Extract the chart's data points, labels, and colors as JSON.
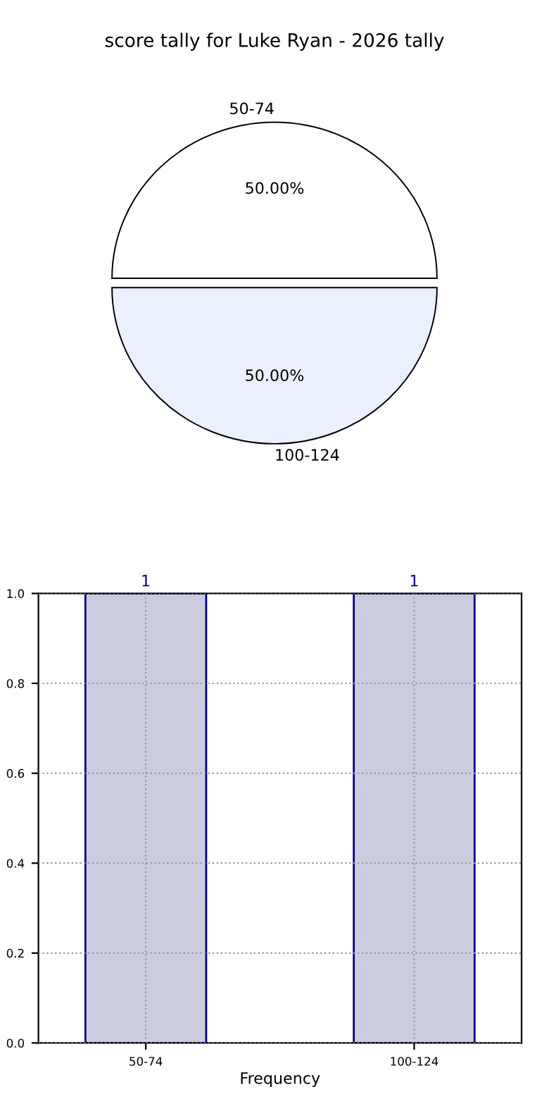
{
  "chart_data": [
    {
      "type": "pie",
      "title": "score tally for Luke Ryan - 2026 tally",
      "categories": [
        "50-74",
        "100-124"
      ],
      "values": [
        50,
        50
      ],
      "colors": [
        "#ffffff",
        "#eaf0fd"
      ],
      "value_labels": [
        "50.00%",
        "50.00%"
      ]
    },
    {
      "type": "bar",
      "categories": [
        "50-74",
        "100-124"
      ],
      "values": [
        1,
        1
      ],
      "color": "#ccccdf",
      "xlabel": "Frequency",
      "ylim": [
        0,
        1.0
      ],
      "yticks": [
        {
          "value": 0,
          "label": "0.0"
        },
        {
          "value": 0.2,
          "label": "0.2"
        },
        {
          "value": 0.4,
          "label": "0.4"
        },
        {
          "value": 0.6,
          "label": "0.6"
        },
        {
          "value": 0.8,
          "label": "0.8"
        },
        {
          "value": 1.0,
          "label": "1.0"
        }
      ],
      "grid": true,
      "line_style": "dotted",
      "data_labels": true
    }
  ]
}
